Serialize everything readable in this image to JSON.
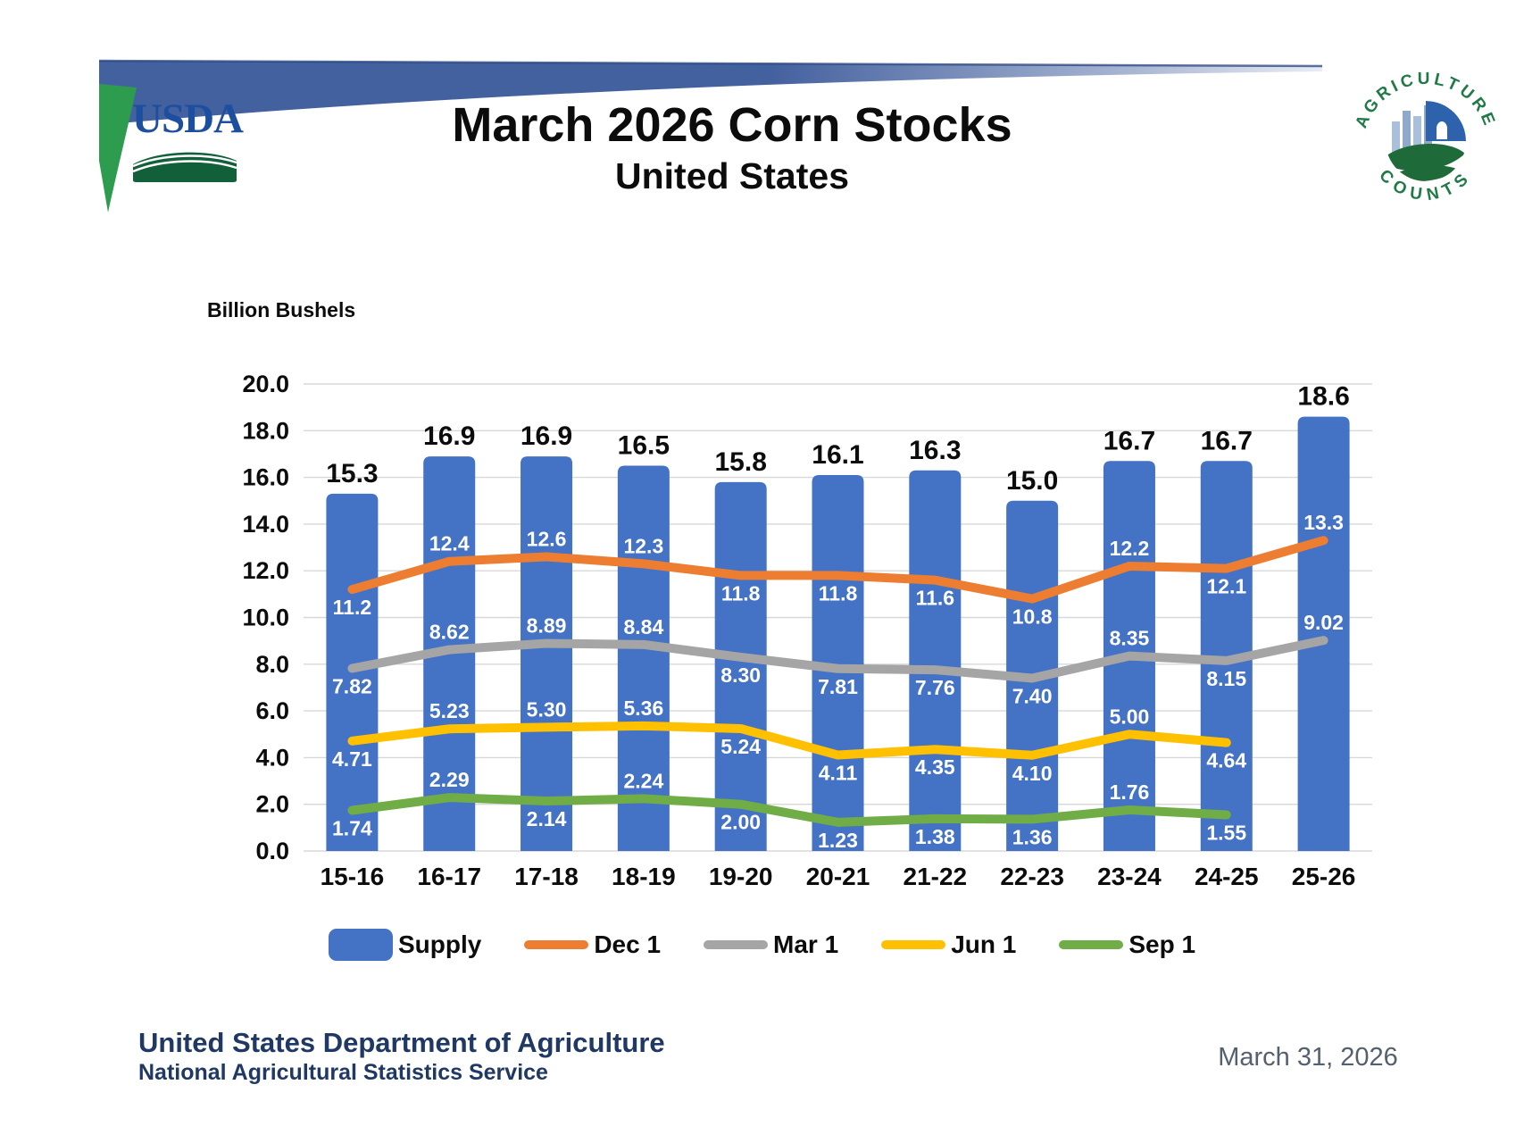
{
  "header": {
    "usda_wordmark": "USDA",
    "title": "March 2026 Corn Stocks",
    "subtitle": "United States",
    "badge_top": "AGRICULTURE",
    "badge_bottom": "COUNTS"
  },
  "chart_data": {
    "type": "combo",
    "title": "March 2026 Corn Stocks — United States",
    "ylabel": "Billion Bushels",
    "ylim": [
      0,
      20
    ],
    "ytick_step": 2,
    "grid": true,
    "legend_position": "bottom",
    "categories": [
      "15-16",
      "16-17",
      "17-18",
      "18-19",
      "19-20",
      "20-21",
      "21-22",
      "22-23",
      "23-24",
      "24-25",
      "25-26"
    ],
    "series": [
      {
        "name": "Supply",
        "type": "bar",
        "color": "#4472C4",
        "values": [
          "15.3",
          "16.9",
          "16.9",
          "16.5",
          "15.8",
          "16.1",
          "16.3",
          "15.0",
          "16.7",
          "16.7",
          "18.6"
        ]
      },
      {
        "name": "Dec 1",
        "type": "line",
        "color": "#ED7D31",
        "values": [
          "11.2",
          "12.4",
          "12.6",
          "12.3",
          "11.8",
          "11.8",
          "11.6",
          "10.8",
          "12.2",
          "12.1",
          "13.3"
        ]
      },
      {
        "name": "Mar 1",
        "type": "line",
        "color": "#A5A5A5",
        "values": [
          "7.82",
          "8.62",
          "8.89",
          "8.84",
          "8.30",
          "7.81",
          "7.76",
          "7.40",
          "8.35",
          "8.15",
          "9.02"
        ]
      },
      {
        "name": "Jun 1",
        "type": "line",
        "color": "#FFC000",
        "values": [
          "4.71",
          "5.23",
          "5.30",
          "5.36",
          "5.24",
          "4.11",
          "4.35",
          "4.10",
          "5.00",
          "4.64"
        ]
      },
      {
        "name": "Sep 1",
        "type": "line",
        "color": "#70AD47",
        "values": [
          "1.74",
          "2.29",
          "2.14",
          "2.24",
          "2.00",
          "1.23",
          "1.38",
          "1.36",
          "1.76",
          "1.55"
        ]
      }
    ]
  },
  "footer": {
    "department": "United States Department of Agriculture",
    "service": "National Agricultural Statistics Service",
    "date": "March 31, 2026"
  }
}
